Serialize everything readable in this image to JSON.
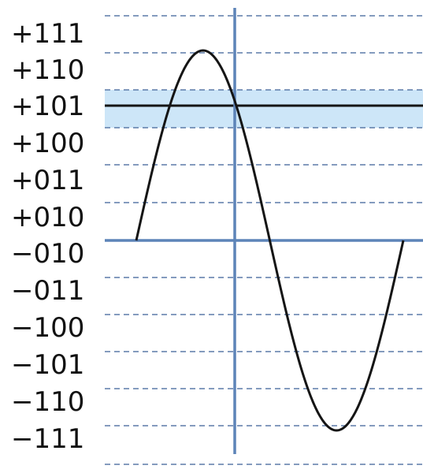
{
  "levels": [
    "+111",
    "+110",
    "+101",
    "+100",
    "+011",
    "+010",
    "-010",
    "-011",
    "-100",
    "-101",
    "-110",
    "-111"
  ],
  "highlighted_level": "+101",
  "colors": {
    "grid_dash": "#5b7aa8",
    "axis": "#5d84b8",
    "highlight_band": "#cde6f8",
    "wave": "#151515",
    "label": "#111111"
  }
}
